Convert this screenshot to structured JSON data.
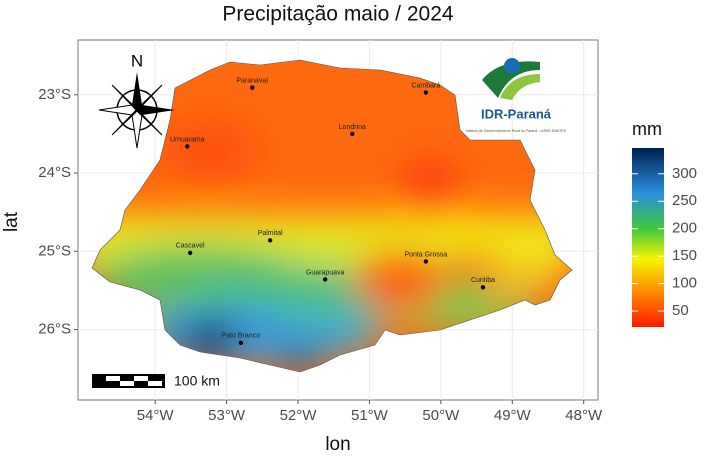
{
  "title": "Precipitação maio / 2024",
  "map": {
    "xlabel": "lon",
    "ylabel": "lat",
    "xlim": [
      -55.08,
      -47.8
    ],
    "ylim": [
      -26.9,
      -22.3
    ],
    "xticks": [
      {
        "value": -54,
        "label": "54°W"
      },
      {
        "value": -53,
        "label": "53°W"
      },
      {
        "value": -52,
        "label": "52°W"
      },
      {
        "value": -51,
        "label": "51°W"
      },
      {
        "value": -50,
        "label": "50°W"
      },
      {
        "value": -49,
        "label": "49°W"
      },
      {
        "value": -48,
        "label": "48°W"
      }
    ],
    "yticks": [
      {
        "value": -23,
        "label": "23°S"
      },
      {
        "value": -24,
        "label": "24°S"
      },
      {
        "value": -25,
        "label": "25°S"
      },
      {
        "value": -26,
        "label": "26°S"
      }
    ],
    "cities": [
      {
        "name": "Paranavaí",
        "lon": -52.64,
        "lat": -22.91
      },
      {
        "name": "Cambará",
        "lon": -50.21,
        "lat": -22.97
      },
      {
        "name": "Umuarama",
        "lon": -53.55,
        "lat": -23.66
      },
      {
        "name": "Londrina",
        "lon": -51.24,
        "lat": -23.5
      },
      {
        "name": "Palmital",
        "lon": -52.39,
        "lat": -24.86
      },
      {
        "name": "Cascavel",
        "lon": -53.51,
        "lat": -25.02
      },
      {
        "name": "Ponta Grossa",
        "lon": -50.21,
        "lat": -25.13
      },
      {
        "name": "Guarapuava",
        "lon": -51.62,
        "lat": -25.36
      },
      {
        "name": "Curitiba",
        "lon": -49.41,
        "lat": -25.46
      },
      {
        "name": "Pato Branco",
        "lon": -52.8,
        "lat": -26.17
      }
    ],
    "north": "N",
    "scale_label": "100 km",
    "logo": {
      "name": "IDR-Paraná",
      "subtitle": "Instituto de Desenvolvimento Rural do Paraná - IAPAR-EMATER"
    }
  },
  "legend": {
    "title": "mm",
    "lim": [
      21,
      347
    ],
    "ticks": [
      50,
      100,
      150,
      200,
      250,
      300
    ]
  }
}
